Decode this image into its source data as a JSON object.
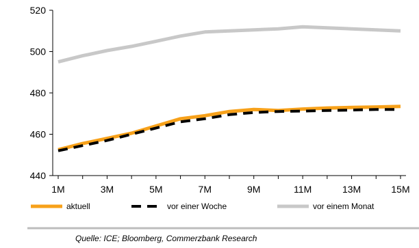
{
  "chart_data": {
    "type": "line",
    "x": [
      "1M",
      "2M",
      "3M",
      "4M",
      "5M",
      "6M",
      "7M",
      "8M",
      "9M",
      "10M",
      "11M",
      "12M",
      "13M",
      "14M",
      "15M"
    ],
    "xticks": [
      "1M",
      "3M",
      "5M",
      "7M",
      "9M",
      "11M",
      "13M",
      "15M"
    ],
    "ylim": [
      440,
      520
    ],
    "yticks": [
      440,
      460,
      480,
      500,
      520
    ],
    "grid": false,
    "legend_position": "bottom",
    "series": [
      {
        "name": "aktuell",
        "color": "#f7a11a",
        "style": "solid",
        "values": [
          452.5,
          455.5,
          458,
          460.5,
          464,
          467.5,
          469,
          471,
          472,
          471.5,
          472.2,
          472.7,
          473,
          473.2,
          473.5
        ]
      },
      {
        "name": "vor einer Woche",
        "color": "#000000",
        "style": "dashed",
        "values": [
          452,
          454.5,
          457,
          460,
          463,
          466,
          467.5,
          469.5,
          470.5,
          471,
          471.2,
          471.5,
          471.7,
          472,
          472
        ]
      },
      {
        "name": "vor einem Monat",
        "color": "#c8c8c8",
        "style": "solid",
        "values": [
          495,
          498,
          500.5,
          502.5,
          505,
          507.5,
          509.5,
          510,
          510.5,
          511,
          512,
          511.5,
          511,
          510.5,
          510
        ]
      }
    ]
  },
  "source": "Quelle: ICE; Bloomberg, Commerzbank Research"
}
